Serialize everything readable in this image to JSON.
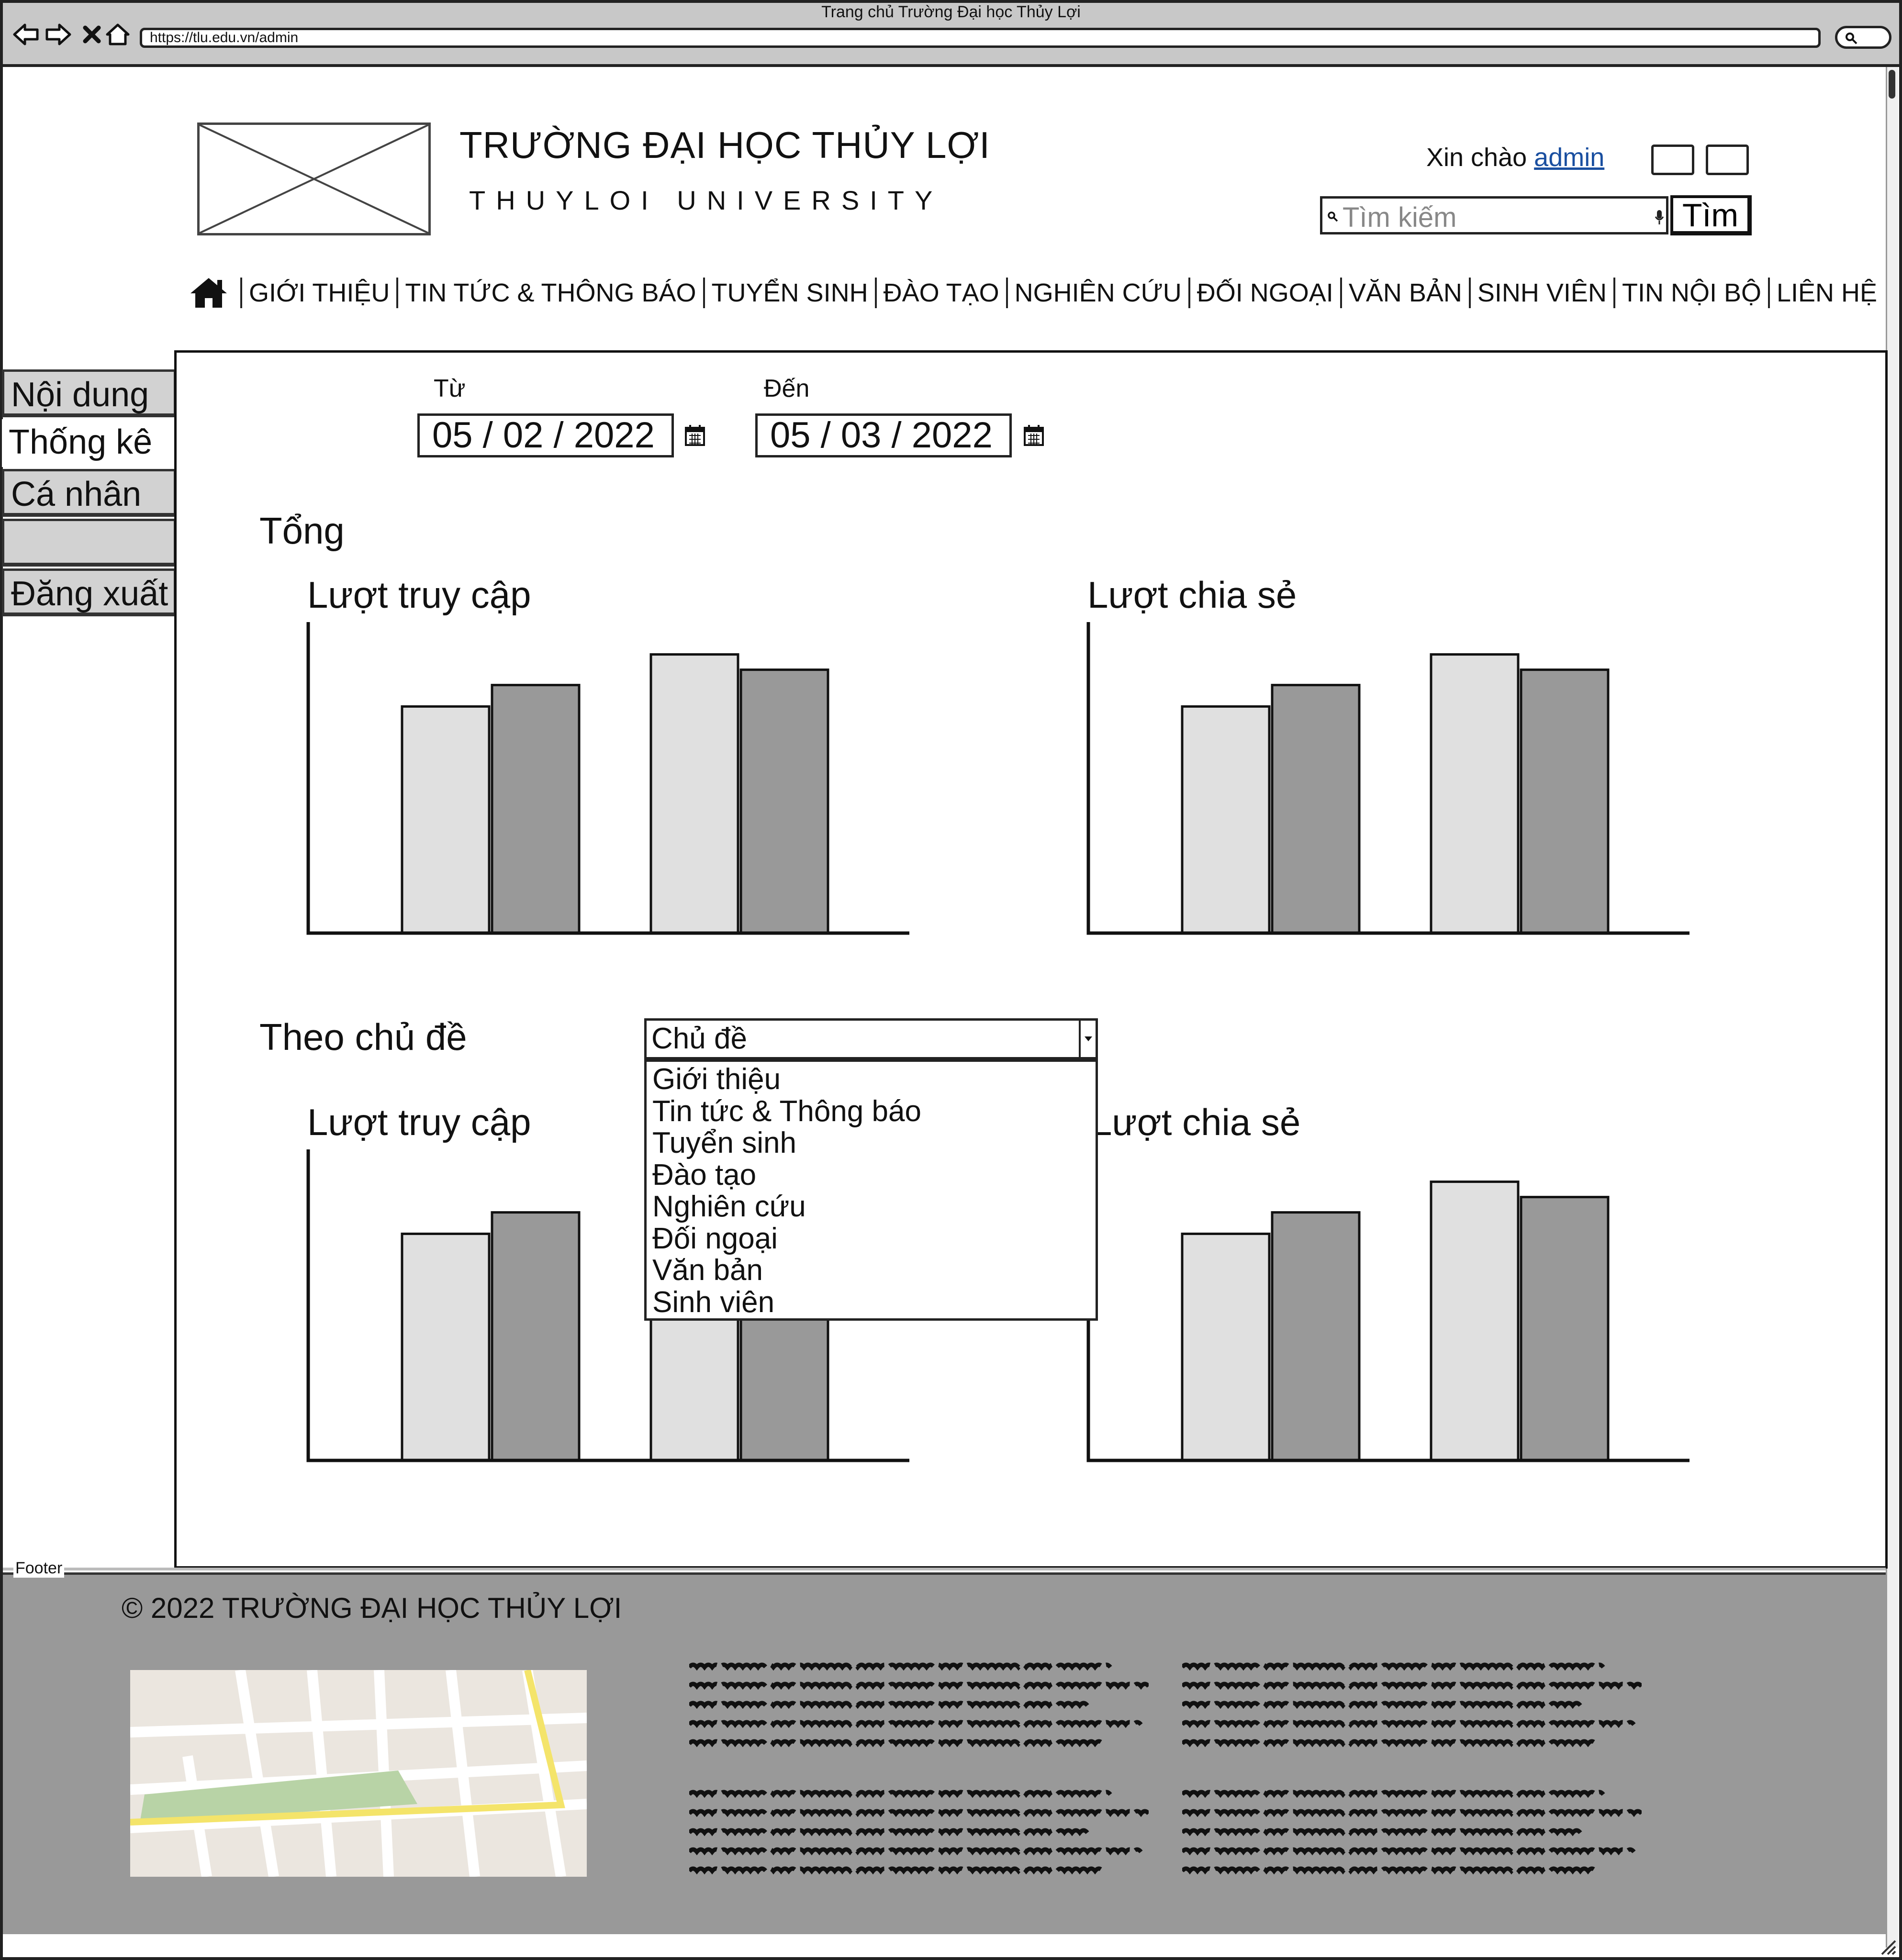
{
  "browser": {
    "title": "Trang chủ Trường Đại học Thủy Lợi",
    "url": "https://tlu.edu.vn/admin"
  },
  "header": {
    "school_name": "TRƯỜNG ĐẠI HỌC THỦY LỢI",
    "school_name_en": "THUYLOI UNIVERSITY",
    "greeting": "Xin chào",
    "username": "admin",
    "search_placeholder": "Tìm kiếm",
    "search_button": "Tìm"
  },
  "nav": {
    "items": [
      "GIỚI THIỆU",
      "TIN TỨC & THÔNG BÁO",
      "TUYỂN SINH",
      "ĐÀO TẠO",
      "NGHIÊN CỨU",
      "ĐỐI NGOẠI",
      "VĂN BẢN",
      "SINH VIÊN",
      "TIN NỘI BỘ",
      "LIÊN HỆ"
    ]
  },
  "sidebar": {
    "items": [
      {
        "label": "Nội dung",
        "active": false
      },
      {
        "label": "Thống kê",
        "active": true
      },
      {
        "label": "Cá nhân",
        "active": false
      },
      {
        "label": "",
        "active": false
      },
      {
        "label": "Đăng xuất",
        "active": false
      }
    ]
  },
  "filters": {
    "from_label": "Từ",
    "from_value": "05 / 02 / 2022",
    "to_label": "Đến",
    "to_value": "05 / 03 / 2022"
  },
  "summary": {
    "title": "Tổng",
    "chart_views_title": "Lượt truy cập",
    "chart_shares_title": "Lượt chia sẻ"
  },
  "by_topic": {
    "title": "Theo chủ đề",
    "select_value": "Chủ đề",
    "options": [
      "Giới thiệu",
      "Tin tức & Thông báo",
      "Tuyển sinh",
      "Đào tạo",
      "Nghiên cứu",
      "Đối ngoại",
      "Văn bản",
      "Sinh viên"
    ],
    "chart_views_title": "Lượt truy cập",
    "chart_shares_title": "Lượt chia sẻ"
  },
  "footer": {
    "legend": "Footer",
    "copyright": "© 2022 TRƯỜNG ĐẠI HỌC THỦY LỢI"
  },
  "colors": {
    "bar_light": "#e0e0e0",
    "bar_dark": "#999999",
    "footer_bg": "#999999",
    "link": "#1a4fa0"
  },
  "chart_data": [
    {
      "type": "bar",
      "title": "Lượt truy cập",
      "categories": [
        "",
        ""
      ],
      "series": [
        {
          "values": [
            74,
            81
          ]
        },
        {
          "values": [
            91,
            86
          ]
        }
      ],
      "ylim": [
        0,
        100
      ]
    },
    {
      "type": "bar",
      "title": "Lượt chia sẻ",
      "categories": [
        "",
        ""
      ],
      "series": [
        {
          "values": [
            74,
            81
          ]
        },
        {
          "values": [
            91,
            86
          ]
        }
      ],
      "ylim": [
        0,
        100
      ]
    },
    {
      "type": "bar",
      "title": "Lượt truy cập",
      "categories": [
        "",
        ""
      ],
      "series": [
        {
          "values": [
            74,
            81
          ]
        },
        {
          "values": [
            91,
            86
          ]
        }
      ],
      "ylim": [
        0,
        100
      ]
    },
    {
      "type": "bar",
      "title": "Lượt chia sẻ",
      "categories": [
        "",
        ""
      ],
      "series": [
        {
          "values": [
            74,
            81
          ]
        },
        {
          "values": [
            91,
            86
          ]
        }
      ],
      "ylim": [
        0,
        100
      ]
    }
  ]
}
